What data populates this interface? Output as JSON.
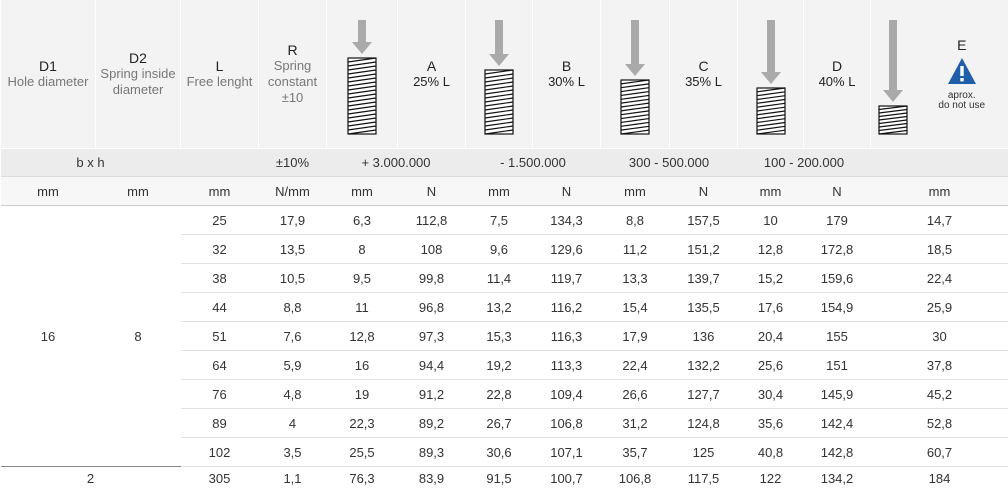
{
  "header": {
    "columns": [
      {
        "code": "D1",
        "label": "Hole diameter"
      },
      {
        "code": "D2",
        "label": "Spring inside diameter"
      },
      {
        "code": "L",
        "label": "Free lenght"
      },
      {
        "code": "R",
        "label": "Spring constant ±10"
      },
      {
        "code": "A",
        "label": "25% L"
      },
      {
        "code": "B",
        "label": "30% L"
      },
      {
        "code": "C",
        "label": "35% L"
      },
      {
        "code": "D",
        "label": "40% L"
      },
      {
        "code": "E",
        "label": "aprox.",
        "note": "do not use"
      }
    ]
  },
  "subheader": {
    "bxh": "b x h",
    "r": "±10%",
    "a": "+ 3.000.000",
    "b": "- 1.500.000",
    "c": "300 - 500.000",
    "d": "100 - 200.000"
  },
  "units": [
    "mm",
    "mm",
    "mm",
    "N/mm",
    "mm",
    "N",
    "mm",
    "N",
    "mm",
    "N",
    "mm",
    "N",
    "mm"
  ],
  "group": {
    "d1": "16",
    "d2": "8",
    "rows": [
      [
        "25",
        "17,9",
        "6,3",
        "112,8",
        "7,5",
        "134,3",
        "8,8",
        "157,5",
        "10",
        "179",
        "14,7"
      ],
      [
        "32",
        "13,5",
        "8",
        "108",
        "9,6",
        "129,6",
        "11,2",
        "151,2",
        "12,8",
        "172,8",
        "18,5"
      ],
      [
        "38",
        "10,5",
        "9,5",
        "99,8",
        "11,4",
        "119,7",
        "13,3",
        "139,7",
        "15,2",
        "159,6",
        "22,4"
      ],
      [
        "44",
        "8,8",
        "11",
        "96,8",
        "13,2",
        "116,2",
        "15,4",
        "135,5",
        "17,6",
        "154,9",
        "25,9"
      ],
      [
        "51",
        "7,6",
        "12,8",
        "97,3",
        "15,3",
        "116,3",
        "17,9",
        "136",
        "20,4",
        "155",
        "30"
      ],
      [
        "64",
        "5,9",
        "16",
        "94,4",
        "19,2",
        "113,3",
        "22,4",
        "132,2",
        "25,6",
        "151",
        "37,8"
      ],
      [
        "76",
        "4,8",
        "19",
        "91,2",
        "22,8",
        "109,4",
        "26,6",
        "127,7",
        "30,4",
        "145,9",
        "45,2"
      ],
      [
        "89",
        "4",
        "22,3",
        "89,2",
        "26,7",
        "106,8",
        "31,2",
        "124,8",
        "35,6",
        "142,4",
        "52,8"
      ],
      [
        "102",
        "3,5",
        "25,5",
        "89,3",
        "30,6",
        "107,1",
        "35,7",
        "125",
        "40,8",
        "142,8",
        "60,7"
      ]
    ]
  },
  "last_row": {
    "bxh": "2",
    "values": [
      "305",
      "1,1",
      "76,3",
      "83,9",
      "91,5",
      "100,7",
      "106,8",
      "117,5",
      "122",
      "134,2",
      "184"
    ]
  }
}
